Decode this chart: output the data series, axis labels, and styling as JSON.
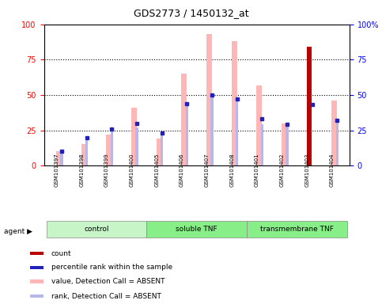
{
  "title": "GDS2773 / 1450132_at",
  "samples": [
    "GSM101397",
    "GSM101398",
    "GSM101399",
    "GSM101400",
    "GSM101405",
    "GSM101406",
    "GSM101407",
    "GSM101408",
    "GSM101401",
    "GSM101402",
    "GSM101403",
    "GSM101404"
  ],
  "groups": [
    {
      "label": "control",
      "color": "#c8f5c8",
      "start": 0,
      "end": 4
    },
    {
      "label": "soluble TNF",
      "color": "#88ee88",
      "start": 4,
      "end": 8
    },
    {
      "label": "transmembrane TNF",
      "color": "#88ee88",
      "start": 8,
      "end": 12
    }
  ],
  "value_absent": [
    10,
    15,
    22,
    41,
    19,
    65,
    93,
    88,
    57,
    30,
    0,
    46
  ],
  "rank_absent": [
    11,
    19,
    25,
    27,
    22,
    44,
    51,
    47,
    29,
    28,
    0,
    33
  ],
  "count": [
    0,
    0,
    0,
    0,
    0,
    0,
    0,
    0,
    0,
    0,
    84,
    0
  ],
  "percentile_rank": [
    10,
    20,
    26,
    30,
    23,
    44,
    50,
    47,
    33,
    29,
    43,
    32
  ],
  "ylim": [
    0,
    100
  ],
  "yticks": [
    0,
    25,
    50,
    75,
    100
  ],
  "value_color": "#ffb6b6",
  "rank_color": "#b8b8e8",
  "count_color": "#bb0000",
  "percentile_color": "#2222bb",
  "legend_items": [
    {
      "color": "#bb0000",
      "label": "count"
    },
    {
      "color": "#2222bb",
      "label": "percentile rank within the sample"
    },
    {
      "color": "#ffb6b6",
      "label": "value, Detection Call = ABSENT"
    },
    {
      "color": "#b8b8e8",
      "label": "rank, Detection Call = ABSENT"
    }
  ]
}
